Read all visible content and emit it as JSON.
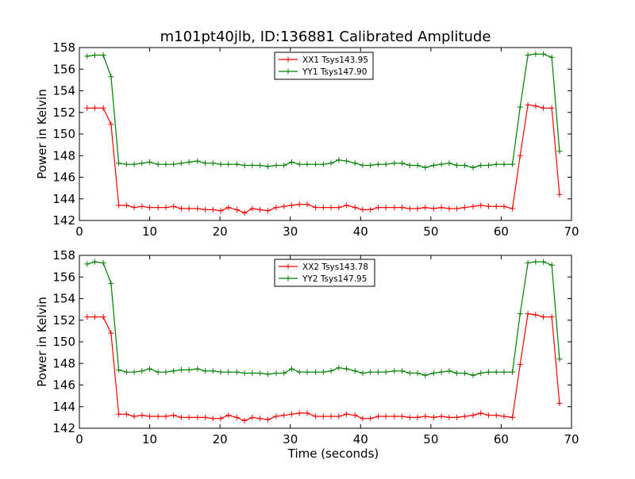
{
  "title": "m101pt40jlb, ID:136881 Calibrated Amplitude",
  "chart_data": [
    {
      "type": "line",
      "xlim": [
        0,
        70
      ],
      "ylim": [
        142,
        158
      ],
      "xticks": [
        "0",
        "10",
        "20",
        "30",
        "40",
        "50",
        "60",
        "70"
      ],
      "yticks": [
        "142",
        "144",
        "146",
        "148",
        "150",
        "152",
        "154",
        "156",
        "158"
      ],
      "ylabel": "Power in Kelvin",
      "xlabel": "",
      "legend": "top-center",
      "grid": false,
      "x": [
        1.1,
        2.2,
        3.4,
        4.5,
        5.6,
        6.7,
        7.8,
        8.9,
        10.0,
        11.2,
        12.3,
        13.4,
        14.5,
        15.6,
        16.8,
        17.9,
        19.0,
        20.1,
        21.2,
        22.4,
        23.5,
        24.6,
        25.7,
        26.8,
        28.0,
        29.1,
        30.2,
        31.3,
        32.4,
        33.6,
        34.7,
        35.8,
        36.9,
        38.0,
        39.2,
        40.3,
        41.4,
        42.5,
        43.6,
        44.8,
        45.9,
        47.0,
        48.1,
        49.2,
        50.4,
        51.5,
        52.6,
        53.7,
        54.8,
        56.0,
        57.1,
        58.2,
        59.3,
        60.4,
        61.6,
        62.7,
        63.8,
        64.9,
        66.0,
        67.2,
        68.3
      ],
      "series": [
        {
          "name": "XX1 Tsys143.95",
          "color": "#ff0000",
          "values": [
            152.4,
            152.4,
            152.4,
            150.9,
            143.4,
            143.4,
            143.2,
            143.3,
            143.2,
            143.2,
            143.2,
            143.3,
            143.1,
            143.1,
            143.1,
            143.0,
            143.0,
            142.9,
            143.2,
            143.0,
            142.7,
            143.1,
            143.0,
            142.9,
            143.2,
            143.3,
            143.4,
            143.5,
            143.5,
            143.2,
            143.2,
            143.2,
            143.2,
            143.4,
            143.2,
            143.0,
            143.0,
            143.2,
            143.2,
            143.2,
            143.2,
            143.1,
            143.1,
            143.2,
            143.1,
            143.2,
            143.1,
            143.1,
            143.2,
            143.3,
            143.4,
            143.3,
            143.3,
            143.3,
            143.1,
            148.0,
            152.7,
            152.6,
            152.4,
            152.4,
            144.4
          ]
        },
        {
          "name": "YY1 Tsys147.90",
          "color": "#008000",
          "values": [
            157.2,
            157.3,
            157.3,
            155.3,
            147.3,
            147.2,
            147.2,
            147.3,
            147.4,
            147.2,
            147.2,
            147.2,
            147.3,
            147.4,
            147.5,
            147.3,
            147.3,
            147.2,
            147.2,
            147.2,
            147.1,
            147.1,
            147.1,
            147.0,
            147.1,
            147.1,
            147.4,
            147.2,
            147.2,
            147.2,
            147.2,
            147.3,
            147.6,
            147.5,
            147.3,
            147.1,
            147.1,
            147.2,
            147.2,
            147.3,
            147.3,
            147.1,
            147.1,
            146.9,
            147.1,
            147.2,
            147.3,
            147.1,
            147.1,
            146.9,
            147.1,
            147.1,
            147.2,
            147.2,
            147.2,
            152.5,
            157.3,
            157.4,
            157.4,
            157.1,
            148.4
          ]
        }
      ]
    },
    {
      "type": "line",
      "xlim": [
        0,
        70
      ],
      "ylim": [
        142,
        158
      ],
      "xticks": [
        "0",
        "10",
        "20",
        "30",
        "40",
        "50",
        "60",
        "70"
      ],
      "yticks": [
        "142",
        "144",
        "146",
        "148",
        "150",
        "152",
        "154",
        "156",
        "158"
      ],
      "ylabel": "Power in Kelvin",
      "xlabel": "Time (seconds)",
      "legend": "top-center",
      "grid": false,
      "x": [
        1.1,
        2.2,
        3.4,
        4.5,
        5.6,
        6.7,
        7.8,
        8.9,
        10.0,
        11.2,
        12.3,
        13.4,
        14.5,
        15.6,
        16.8,
        17.9,
        19.0,
        20.1,
        21.2,
        22.4,
        23.5,
        24.6,
        25.7,
        26.8,
        28.0,
        29.1,
        30.2,
        31.3,
        32.4,
        33.6,
        34.7,
        35.8,
        36.9,
        38.0,
        39.2,
        40.3,
        41.4,
        42.5,
        43.6,
        44.8,
        45.9,
        47.0,
        48.1,
        49.2,
        50.4,
        51.5,
        52.6,
        53.7,
        54.8,
        56.0,
        57.1,
        58.2,
        59.3,
        60.4,
        61.6,
        62.7,
        63.8,
        64.9,
        66.0,
        67.2,
        68.3
      ],
      "series": [
        {
          "name": "XX2 Tsys143.78",
          "color": "#ff0000",
          "values": [
            152.3,
            152.3,
            152.3,
            150.8,
            143.3,
            143.3,
            143.1,
            143.2,
            143.1,
            143.1,
            143.1,
            143.2,
            143.0,
            143.0,
            143.0,
            143.0,
            142.9,
            142.9,
            143.2,
            143.0,
            142.7,
            143.0,
            142.9,
            142.8,
            143.1,
            143.2,
            143.3,
            143.4,
            143.4,
            143.1,
            143.1,
            143.1,
            143.1,
            143.3,
            143.2,
            142.9,
            142.9,
            143.1,
            143.1,
            143.1,
            143.1,
            143.0,
            143.0,
            143.1,
            143.0,
            143.1,
            143.0,
            143.0,
            143.1,
            143.2,
            143.4,
            143.2,
            143.2,
            143.1,
            143.0,
            147.9,
            152.6,
            152.5,
            152.3,
            152.3,
            144.3
          ]
        },
        {
          "name": "YY2 Tsys147.95",
          "color": "#008000",
          "values": [
            157.2,
            157.4,
            157.3,
            155.4,
            147.4,
            147.2,
            147.2,
            147.3,
            147.5,
            147.2,
            147.2,
            147.3,
            147.4,
            147.4,
            147.5,
            147.3,
            147.3,
            147.2,
            147.2,
            147.2,
            147.1,
            147.1,
            147.1,
            147.0,
            147.1,
            147.1,
            147.5,
            147.2,
            147.2,
            147.2,
            147.2,
            147.3,
            147.6,
            147.5,
            147.3,
            147.1,
            147.2,
            147.2,
            147.2,
            147.3,
            147.3,
            147.1,
            147.1,
            146.9,
            147.1,
            147.2,
            147.3,
            147.1,
            147.1,
            146.9,
            147.1,
            147.2,
            147.2,
            147.2,
            147.2,
            152.6,
            157.3,
            157.4,
            157.4,
            157.1,
            148.4
          ]
        }
      ]
    }
  ]
}
